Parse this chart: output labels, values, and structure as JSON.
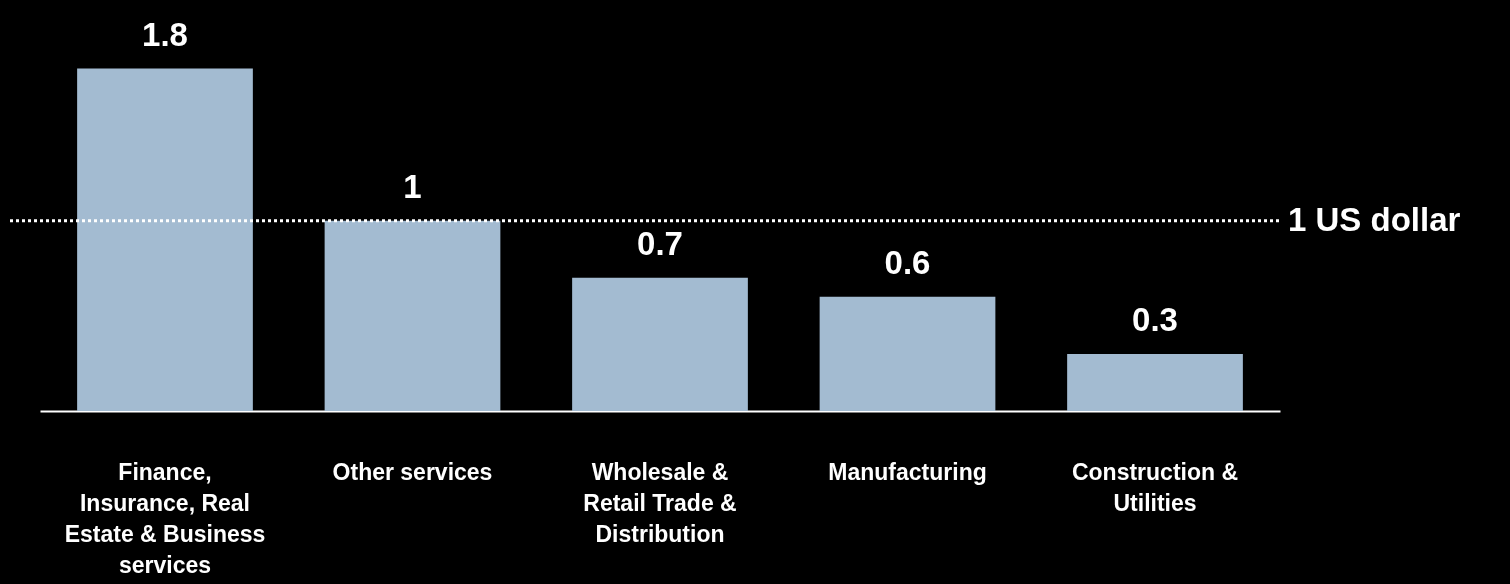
{
  "chart_data": {
    "type": "bar",
    "categories": [
      "Finance, Insurance, Real Estate & Business services",
      "Other services",
      "Wholesale & Retail Trade & Distribution",
      "Manufacturing",
      "Construction & Utilities"
    ],
    "values": [
      1.8,
      1,
      0.7,
      0.6,
      0.3
    ],
    "color": "#a3bbd1",
    "ylim": [
      0,
      2.16
    ],
    "data_labels": true,
    "tick_labels": "x",
    "ref_lines": [
      {
        "axis": "y",
        "value": 1,
        "label": "1 US dollar",
        "color": "#ffffff",
        "line_style": "dotted"
      }
    ]
  }
}
